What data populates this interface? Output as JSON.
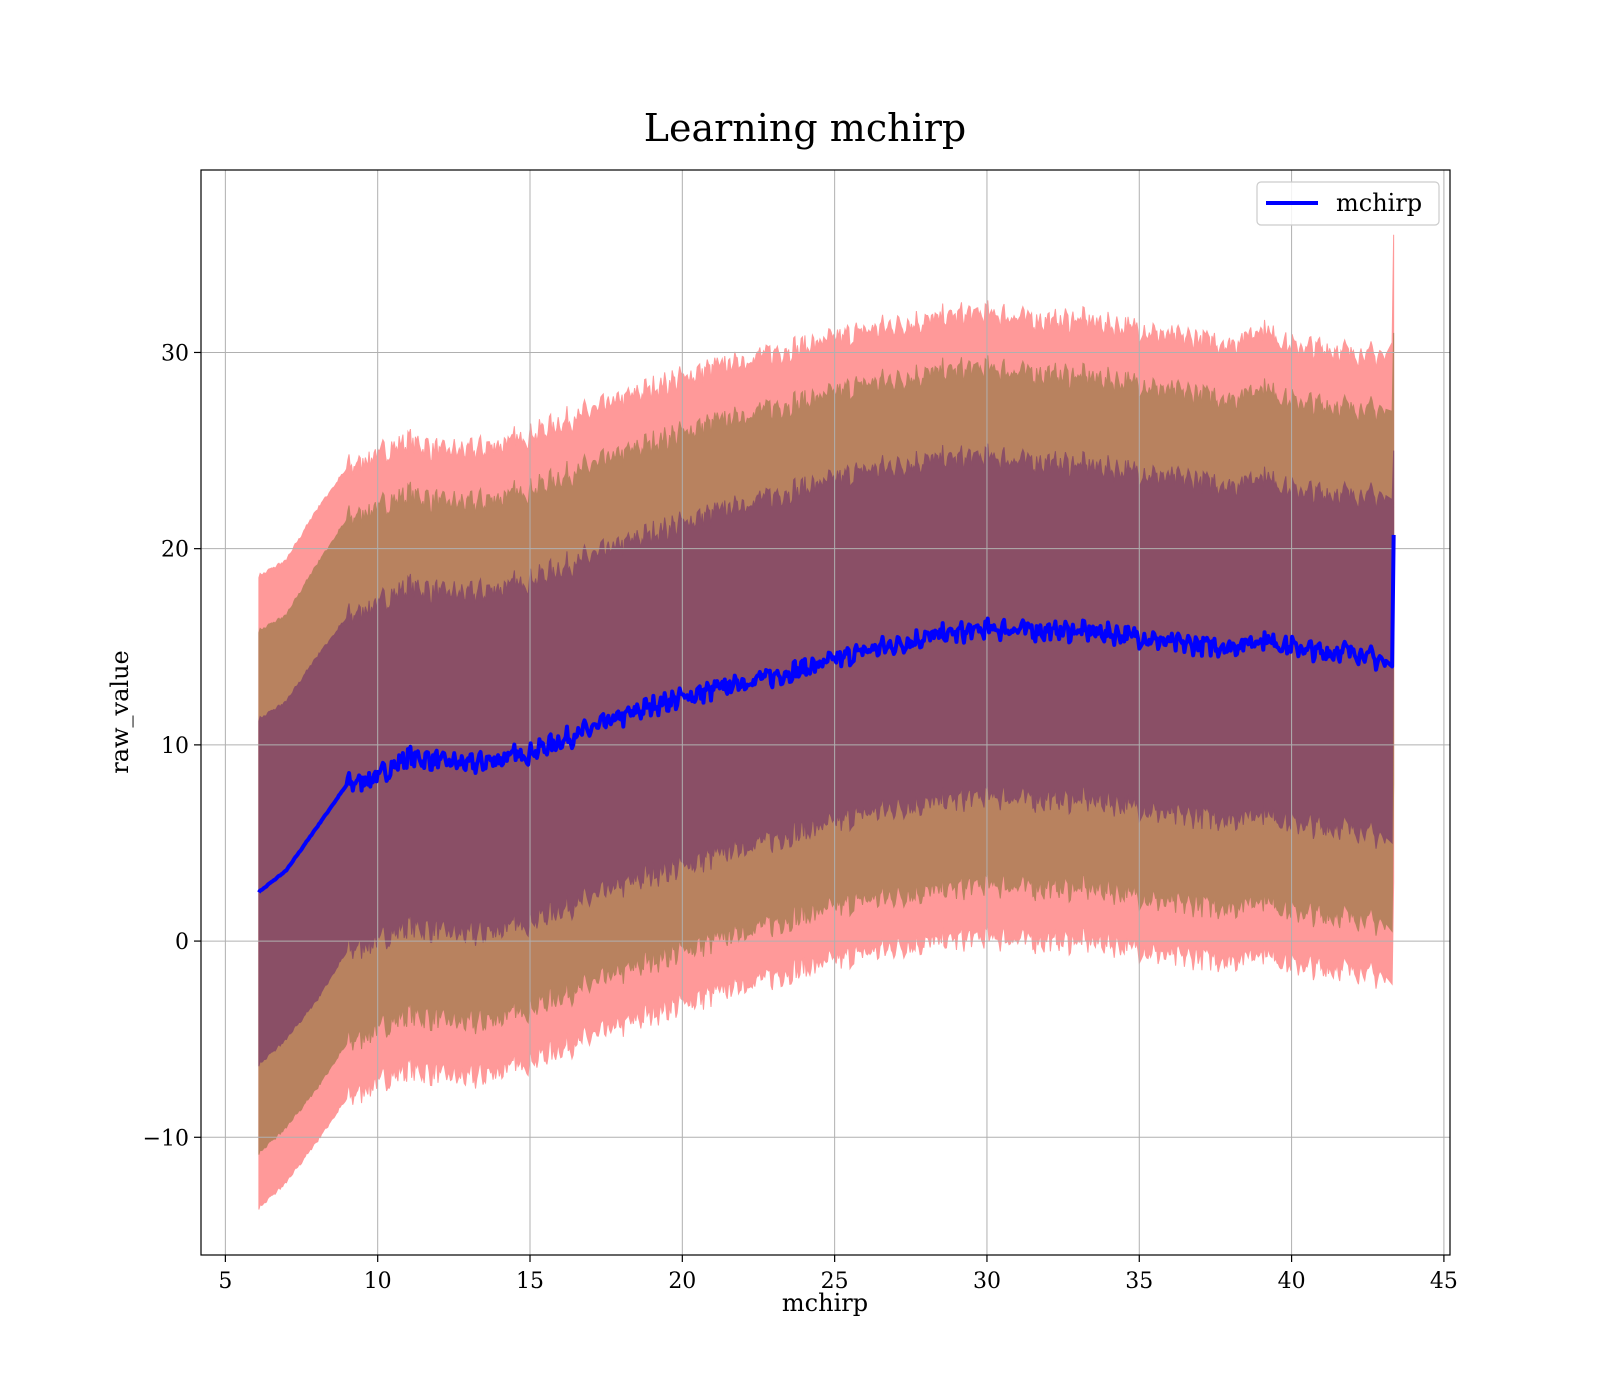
{
  "chart_data": {
    "type": "area",
    "title": "Learning mchirp",
    "xlabel": "mchirp",
    "ylabel": "raw_value",
    "xlim": [
      4.2,
      45.2
    ],
    "ylim": [
      -16.0,
      39.3
    ],
    "xticks": [
      5,
      10,
      15,
      20,
      25,
      30,
      35,
      40,
      45
    ],
    "yticks": [
      -10,
      0,
      10,
      20,
      30
    ],
    "xtick_labels": [
      "5",
      "10",
      "15",
      "20",
      "25",
      "30",
      "35",
      "40",
      "45"
    ],
    "ytick_labels": [
      "−10",
      "0",
      "10",
      "20",
      "30"
    ],
    "grid": true,
    "legend": {
      "placement": "top-right",
      "entries": [
        "mchirp"
      ]
    },
    "colors": {
      "line": "#0000ff",
      "band3": "#ff9999",
      "band2": "#b8825f",
      "band1": "#8a4f66"
    },
    "x": [
      6.1,
      7,
      8,
      9,
      10,
      11,
      12,
      13,
      14,
      15,
      16,
      17,
      18,
      19,
      20,
      21,
      22,
      23,
      24,
      25,
      26,
      27,
      28,
      29,
      30,
      31,
      32,
      33,
      34,
      35,
      36,
      37,
      38,
      39,
      40,
      41,
      42,
      43.1,
      43.3,
      43.35
    ],
    "series": [
      {
        "name": "mchirp",
        "values": [
          2.5,
          3.6,
          5.8,
          8.0,
          8.4,
          9.4,
          9.2,
          9.0,
          9.3,
          9.6,
          10.2,
          10.8,
          11.4,
          12.0,
          12.4,
          12.8,
          13.2,
          13.5,
          13.9,
          14.3,
          14.8,
          15.1,
          15.5,
          15.7,
          15.9,
          15.9,
          15.8,
          15.8,
          15.7,
          15.5,
          15.2,
          15.1,
          15.0,
          15.4,
          15.0,
          14.7,
          14.8,
          14.2,
          14.0,
          20.7
        ]
      }
    ],
    "bands": [
      {
        "upper": [
          11.3,
          12.2,
          14.5,
          16.5,
          17.2,
          18.1,
          17.8,
          17.7,
          18.0,
          18.4,
          19.0,
          19.6,
          20.2,
          20.8,
          21.3,
          21.8,
          22.3,
          22.7,
          23.1,
          23.5,
          24.0,
          24.2,
          24.5,
          24.6,
          24.7,
          24.5,
          24.4,
          24.3,
          24.1,
          23.9,
          23.6,
          23.5,
          23.2,
          23.8,
          23.0,
          22.8,
          22.8,
          22.6,
          22.5,
          25.0
        ],
        "lower": [
          -6.3,
          -5.0,
          -3.0,
          -0.5,
          0.0,
          0.8,
          0.5,
          0.3,
          0.6,
          1.0,
          1.6,
          2.2,
          2.8,
          3.4,
          3.8,
          4.3,
          4.8,
          5.2,
          5.6,
          6.0,
          6.5,
          6.8,
          7.0,
          7.2,
          7.4,
          7.3,
          7.2,
          7.2,
          7.1,
          6.8,
          6.4,
          6.4,
          6.2,
          6.6,
          6.0,
          5.8,
          5.8,
          5.2,
          5.0,
          16.0
        ]
      },
      {
        "upper": [
          15.8,
          16.6,
          19.2,
          21.5,
          22.1,
          22.8,
          22.4,
          22.3,
          22.6,
          23.0,
          23.6,
          24.2,
          24.8,
          25.4,
          25.9,
          26.4,
          26.8,
          27.2,
          27.5,
          27.9,
          28.4,
          28.6,
          28.9,
          29.1,
          29.2,
          29.0,
          28.9,
          28.8,
          28.6,
          28.4,
          28.0,
          27.9,
          27.6,
          28.3,
          27.5,
          27.3,
          27.2,
          27.0,
          27.0,
          31.0
        ],
        "lower": [
          -10.8,
          -9.5,
          -7.5,
          -5.2,
          -4.5,
          -3.7,
          -4.0,
          -4.2,
          -3.9,
          -3.4,
          -2.8,
          -2.2,
          -1.6,
          -1.0,
          -0.5,
          0.0,
          0.5,
          0.9,
          1.3,
          1.7,
          2.1,
          2.3,
          2.5,
          2.7,
          2.9,
          2.8,
          2.7,
          2.7,
          2.6,
          2.3,
          1.9,
          1.9,
          1.7,
          2.2,
          1.5,
          1.3,
          1.3,
          0.8,
          0.5,
          8.0
        ]
      },
      {
        "upper": [
          18.6,
          19.4,
          22.0,
          24.1,
          24.8,
          25.5,
          25.0,
          25.0,
          25.3,
          25.8,
          26.4,
          27.0,
          27.6,
          28.2,
          28.7,
          29.2,
          29.6,
          30.0,
          30.3,
          30.7,
          31.1,
          31.4,
          31.6,
          31.9,
          32.0,
          31.8,
          31.6,
          31.7,
          31.4,
          31.2,
          30.8,
          30.7,
          30.4,
          31.3,
          30.3,
          30.2,
          30.0,
          29.8,
          30.5,
          36.0
        ],
        "lower": [
          -13.6,
          -12.3,
          -10.2,
          -8.0,
          -7.2,
          -6.5,
          -6.8,
          -7.0,
          -6.6,
          -6.1,
          -5.5,
          -4.9,
          -4.3,
          -3.7,
          -3.2,
          -2.7,
          -2.2,
          -1.8,
          -1.4,
          -1.0,
          -0.6,
          -0.3,
          -0.1,
          0.1,
          0.2,
          0.1,
          0.0,
          0.0,
          -0.1,
          -0.4,
          -0.8,
          -0.8,
          -1.0,
          -0.5,
          -1.2,
          -1.4,
          -1.4,
          -1.9,
          -2.2,
          3.0
        ]
      }
    ]
  }
}
